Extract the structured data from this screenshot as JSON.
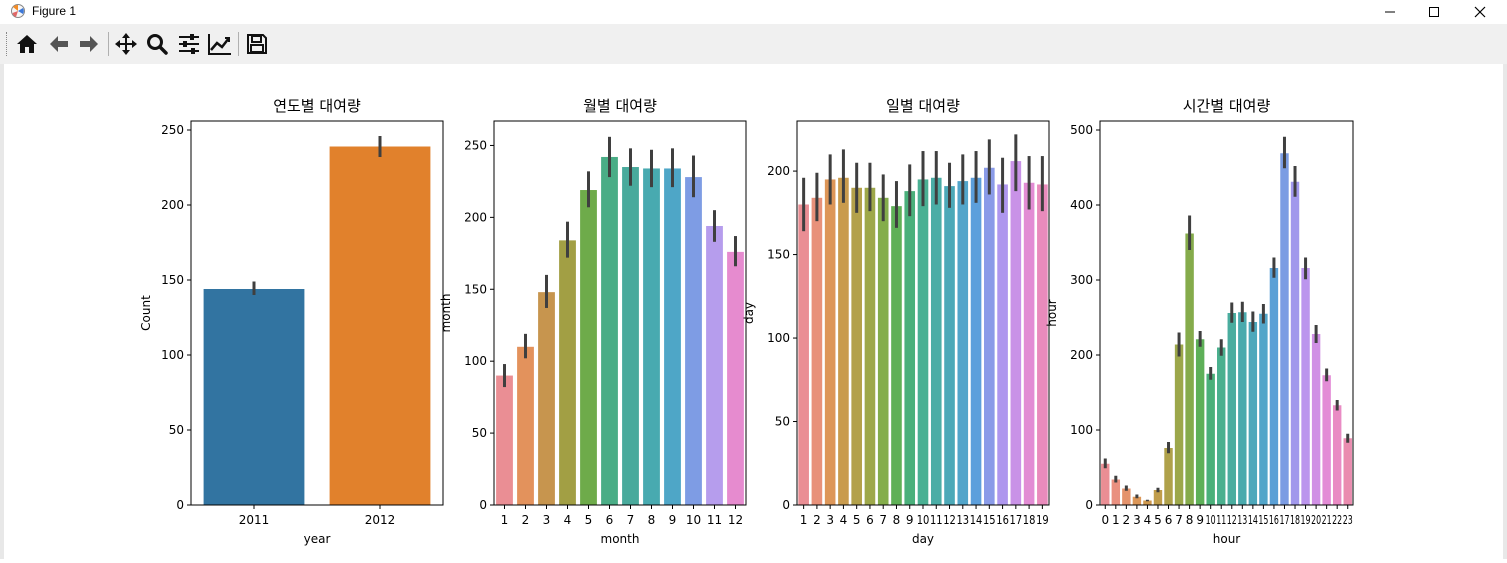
{
  "window": {
    "title": "Figure 1"
  },
  "toolbar": {
    "buttons": [
      {
        "name": "home-button",
        "icon": "home-icon"
      },
      {
        "name": "back-button",
        "icon": "arrow-left-icon"
      },
      {
        "name": "forward-button",
        "icon": "arrow-right-icon"
      },
      {
        "name": "pan-button",
        "icon": "move-icon"
      },
      {
        "name": "zoom-button",
        "icon": "magnifier-icon"
      },
      {
        "name": "subplots-button",
        "icon": "sliders-icon"
      },
      {
        "name": "edit-axis-button",
        "icon": "line-chart-icon"
      },
      {
        "name": "save-button",
        "icon": "floppy-disk-icon"
      }
    ]
  },
  "chart_data": [
    {
      "type": "bar",
      "title": "연도별 대여량",
      "xlabel": "year",
      "ylabel": "Count",
      "categories": [
        "2011",
        "2012"
      ],
      "values": [
        144,
        239
      ],
      "error": [
        [
          140,
          149
        ],
        [
          232,
          246
        ]
      ],
      "ylim": [
        0,
        256
      ],
      "yticks": [
        0,
        50,
        100,
        150,
        200,
        250
      ],
      "colors": [
        "#3274a1",
        "#e1812c"
      ]
    },
    {
      "type": "bar",
      "title": "월별 대여량",
      "xlabel": "month",
      "ylabel": "month",
      "categories": [
        "1",
        "2",
        "3",
        "4",
        "5",
        "6",
        "7",
        "8",
        "9",
        "10",
        "11",
        "12"
      ],
      "values": [
        90,
        110,
        148,
        184,
        219,
        242,
        235,
        234,
        234,
        228,
        194,
        176
      ],
      "error": [
        [
          82,
          98
        ],
        [
          102,
          119
        ],
        [
          137,
          160
        ],
        [
          172,
          197
        ],
        [
          207,
          232
        ],
        [
          228,
          256
        ],
        [
          222,
          248
        ],
        [
          221,
          247
        ],
        [
          221,
          248
        ],
        [
          214,
          243
        ],
        [
          183,
          205
        ],
        [
          166,
          187
        ]
      ],
      "ylim": [
        0,
        267
      ],
      "yticks": [
        0,
        50,
        100,
        150,
        200,
        250
      ],
      "colors": [
        "#ea8e94",
        "#e3925c",
        "#c7954e",
        "#a29f44",
        "#6eab4a",
        "#4aad86",
        "#49aa9c",
        "#48aab0",
        "#4ea6c7",
        "#7e9ce4",
        "#b69ded",
        "#e68bcf"
      ]
    },
    {
      "type": "bar",
      "title": "일별 대여량",
      "xlabel": "day",
      "ylabel": "day",
      "categories": [
        "1",
        "2",
        "3",
        "4",
        "5",
        "6",
        "7",
        "8",
        "9",
        "10",
        "11",
        "12",
        "13",
        "14",
        "15",
        "16",
        "17",
        "18",
        "19"
      ],
      "values": [
        180,
        184,
        195,
        196,
        190,
        190,
        184,
        179,
        188,
        195,
        196,
        191,
        194,
        196,
        202,
        192,
        206,
        193,
        192
      ],
      "error": [
        [
          164,
          196
        ],
        [
          170,
          199
        ],
        [
          180,
          210
        ],
        [
          181,
          213
        ],
        [
          175,
          205
        ],
        [
          176,
          205
        ],
        [
          170,
          198
        ],
        [
          166,
          194
        ],
        [
          173,
          204
        ],
        [
          179,
          212
        ],
        [
          180,
          212
        ],
        [
          178,
          205
        ],
        [
          180,
          210
        ],
        [
          181,
          212
        ],
        [
          186,
          219
        ],
        [
          175,
          208
        ],
        [
          188,
          222
        ],
        [
          177,
          209
        ],
        [
          176,
          209
        ]
      ],
      "ylim": [
        0,
        230
      ],
      "yticks": [
        0,
        50,
        100,
        150,
        200
      ],
      "colors": [
        "#ea8e94",
        "#e8917a",
        "#dd9658",
        "#c99b4d",
        "#b3a14a",
        "#9ea84a",
        "#84ad4b",
        "#5fb057",
        "#4ab07b",
        "#4ab093",
        "#4aada6",
        "#4ca9b8",
        "#52a5ca",
        "#5c9fdc",
        "#8a9be8",
        "#ae97ee",
        "#c992e7",
        "#e28cd4",
        "#e98bbc"
      ]
    },
    {
      "type": "bar",
      "title": "시간별 대여량",
      "xlabel": "hour",
      "ylabel": "hour",
      "categories": [
        "0",
        "1",
        "2",
        "3",
        "4",
        "5",
        "6",
        "7",
        "8",
        "9",
        "10",
        "11",
        "12",
        "13",
        "14",
        "15",
        "16",
        "17",
        "18",
        "19",
        "20",
        "21",
        "22",
        "23"
      ],
      "values": [
        55,
        34,
        22,
        11,
        6,
        20,
        76,
        214,
        362,
        221,
        175,
        210,
        256,
        257,
        244,
        255,
        316,
        469,
        431,
        316,
        228,
        173,
        133,
        89
      ],
      "error": [
        [
          49,
          62
        ],
        [
          30,
          39
        ],
        [
          19,
          26
        ],
        [
          9,
          14
        ],
        [
          5,
          7
        ],
        [
          17,
          23
        ],
        [
          69,
          84
        ],
        [
          198,
          230
        ],
        [
          340,
          386
        ],
        [
          211,
          232
        ],
        [
          167,
          184
        ],
        [
          199,
          221
        ],
        [
          243,
          270
        ],
        [
          244,
          271
        ],
        [
          231,
          258
        ],
        [
          242,
          268
        ],
        [
          303,
          330
        ],
        [
          449,
          491
        ],
        [
          411,
          452
        ],
        [
          301,
          330
        ],
        [
          216,
          240
        ],
        [
          165,
          182
        ],
        [
          126,
          140
        ],
        [
          83,
          95
        ]
      ],
      "ylim": [
        0,
        512
      ],
      "yticks": [
        0,
        100,
        200,
        300,
        400,
        500
      ],
      "colors": [
        "#ea8e94",
        "#e9907f",
        "#e4936c",
        "#dc9759",
        "#cf994f",
        "#c09d4b",
        "#afa14a",
        "#9ca74a",
        "#85ab4b",
        "#5eb058",
        "#4ab07a",
        "#4ab08e",
        "#4aad9f",
        "#4aaaad",
        "#4da8bb",
        "#52a5c9",
        "#5aa0d6",
        "#7b9ce3",
        "#a198ec",
        "#bb95ed",
        "#d090e5",
        "#e38cd6",
        "#e98bc4",
        "#ea8caf"
      ]
    }
  ]
}
